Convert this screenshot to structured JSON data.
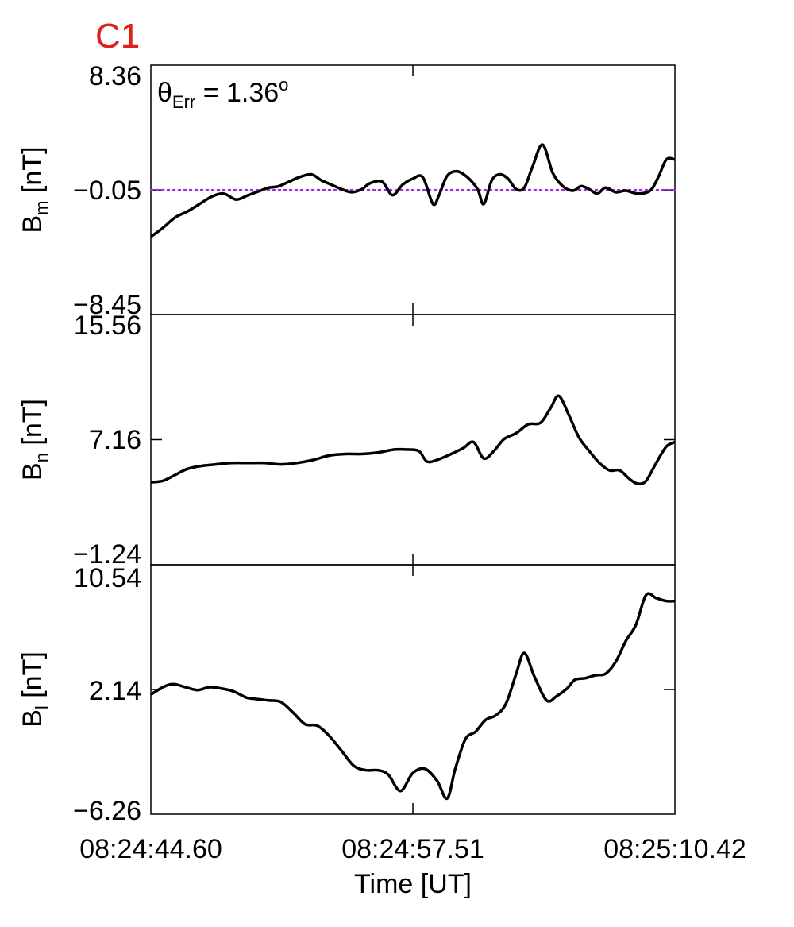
{
  "figure": {
    "panel_label": "C1",
    "panel_label_color": "#e0201b",
    "line_color": "#000000",
    "reference_line_color": "#9a2ee0",
    "xlabel": "Time [UT]"
  },
  "chart_data": [
    {
      "type": "line",
      "ylabel": {
        "main": "B",
        "sub": "m",
        "unit": " [nT]"
      },
      "annotation": {
        "symbol": "θ",
        "sub": "Err",
        "text": " =  1.36",
        "sup": "o"
      },
      "ylim": [
        -8.45,
        8.36
      ],
      "yticks": [
        -8.45,
        -0.05,
        8.36
      ],
      "ytick_labels": [
        "−8.45",
        "−0.05",
        "8.36"
      ],
      "reference_line": -0.05,
      "x_range": [
        0,
        25.82
      ],
      "series": [
        {
          "x": [
            0,
            0.6,
            1.2,
            1.8,
            2.4,
            3.0,
            3.6,
            4.2,
            4.8,
            5.4,
            5.8,
            6.3,
            6.8,
            7.3,
            7.9,
            8.4,
            8.9,
            9.4,
            9.9,
            10.4,
            10.8,
            11.4,
            11.9,
            12.4,
            12.9,
            13.4,
            13.9,
            14.2,
            14.6,
            15.1,
            15.6,
            16.1,
            16.4,
            16.8,
            17.2,
            17.6,
            18.0,
            18.4,
            18.8,
            19.3,
            19.8,
            20.3,
            20.8,
            21.2,
            21.6,
            22.0,
            22.4,
            22.9,
            23.4,
            24.0,
            24.6,
            25.0,
            25.4,
            25.82
          ],
          "y": [
            -3.2,
            -2.6,
            -1.9,
            -1.5,
            -1.0,
            -0.5,
            -0.3,
            -0.7,
            -0.4,
            -0.1,
            0.1,
            0.2,
            0.5,
            0.8,
            1.0,
            0.6,
            0.3,
            0.0,
            -0.2,
            0.0,
            0.4,
            0.5,
            -0.4,
            0.3,
            0.7,
            0.8,
            -1.0,
            -0.4,
            0.9,
            1.2,
            0.8,
            0.0,
            -1.0,
            0.6,
            1.0,
            0.7,
            0.0,
            0.1,
            1.5,
            3.0,
            1.1,
            0.2,
            -0.1,
            0.2,
            0.0,
            -0.3,
            0.1,
            -0.2,
            -0.1,
            -0.3,
            -0.1,
            0.8,
            2.0,
            2.0
          ]
        }
      ]
    },
    {
      "type": "line",
      "ylabel": {
        "main": "B",
        "sub": "n",
        "unit": " [nT]"
      },
      "ylim": [
        -1.24,
        15.56
      ],
      "yticks": [
        -1.24,
        7.16,
        15.56
      ],
      "ytick_labels": [
        "−1.24",
        "7.16",
        "15.56"
      ],
      "x_range": [
        0,
        25.82
      ],
      "series": [
        {
          "x": [
            0,
            0.6,
            1.2,
            1.8,
            2.5,
            3.2,
            4.0,
            4.8,
            5.6,
            6.4,
            7.2,
            8.0,
            8.8,
            9.6,
            10.4,
            11.2,
            12.0,
            12.6,
            13.2,
            13.6,
            14.1,
            14.8,
            15.4,
            15.9,
            16.4,
            16.9,
            17.4,
            18.0,
            18.6,
            19.2,
            19.7,
            20.1,
            20.6,
            21.1,
            21.6,
            22.1,
            22.6,
            23.1,
            23.6,
            24.0,
            24.4,
            24.9,
            25.4,
            25.82
          ],
          "y": [
            4.3,
            4.4,
            4.8,
            5.2,
            5.4,
            5.5,
            5.6,
            5.6,
            5.6,
            5.5,
            5.6,
            5.8,
            6.1,
            6.2,
            6.2,
            6.3,
            6.5,
            6.5,
            6.4,
            5.7,
            5.8,
            6.2,
            6.6,
            7.0,
            5.9,
            6.4,
            7.2,
            7.6,
            8.2,
            8.3,
            9.3,
            10.1,
            8.8,
            7.3,
            6.4,
            5.6,
            5.1,
            5.1,
            4.5,
            4.2,
            4.4,
            5.6,
            6.7,
            7.0
          ]
        }
      ]
    },
    {
      "type": "line",
      "ylabel": {
        "main": "B",
        "sub": "l",
        "unit": " [nT]"
      },
      "ylim": [
        -6.26,
        10.54
      ],
      "yticks": [
        -6.26,
        2.14,
        10.54
      ],
      "ytick_labels": [
        "−6.26",
        "2.14",
        "10.54"
      ],
      "x_range": [
        0,
        25.82
      ],
      "series": [
        {
          "x": [
            0,
            0.6,
            1.1,
            1.7,
            2.3,
            2.9,
            3.5,
            4.1,
            4.7,
            5.2,
            5.8,
            6.4,
            7.0,
            7.6,
            8.2,
            8.8,
            9.4,
            10.0,
            10.6,
            11.2,
            11.7,
            12.3,
            12.9,
            13.5,
            14.1,
            14.6,
            15.0,
            15.5,
            16.0,
            16.5,
            17.0,
            17.5,
            18.0,
            18.4,
            18.9,
            19.5,
            20.0,
            20.5,
            20.9,
            21.4,
            21.9,
            22.4,
            22.9,
            23.4,
            23.9,
            24.4,
            24.9,
            25.4,
            25.82
          ],
          "y": [
            1.8,
            2.3,
            2.5,
            2.3,
            2.1,
            2.3,
            2.2,
            2.0,
            1.6,
            1.5,
            1.4,
            1.3,
            0.6,
            -0.2,
            -0.3,
            -1.0,
            -2.0,
            -3.0,
            -3.3,
            -3.3,
            -3.6,
            -4.7,
            -3.5,
            -3.2,
            -4.0,
            -5.2,
            -3.2,
            -1.2,
            -0.7,
            0.1,
            0.4,
            1.2,
            3.2,
            4.6,
            3.0,
            1.4,
            1.7,
            2.2,
            2.8,
            2.9,
            3.1,
            3.2,
            4.0,
            5.4,
            6.5,
            8.5,
            8.3,
            8.1,
            8.1
          ]
        }
      ]
    }
  ],
  "x_axis": {
    "ticks": [
      0,
      12.91,
      25.82
    ],
    "tick_labels": [
      "08:24:44.60",
      "08:24:57.51",
      "08:25:10.42"
    ]
  }
}
